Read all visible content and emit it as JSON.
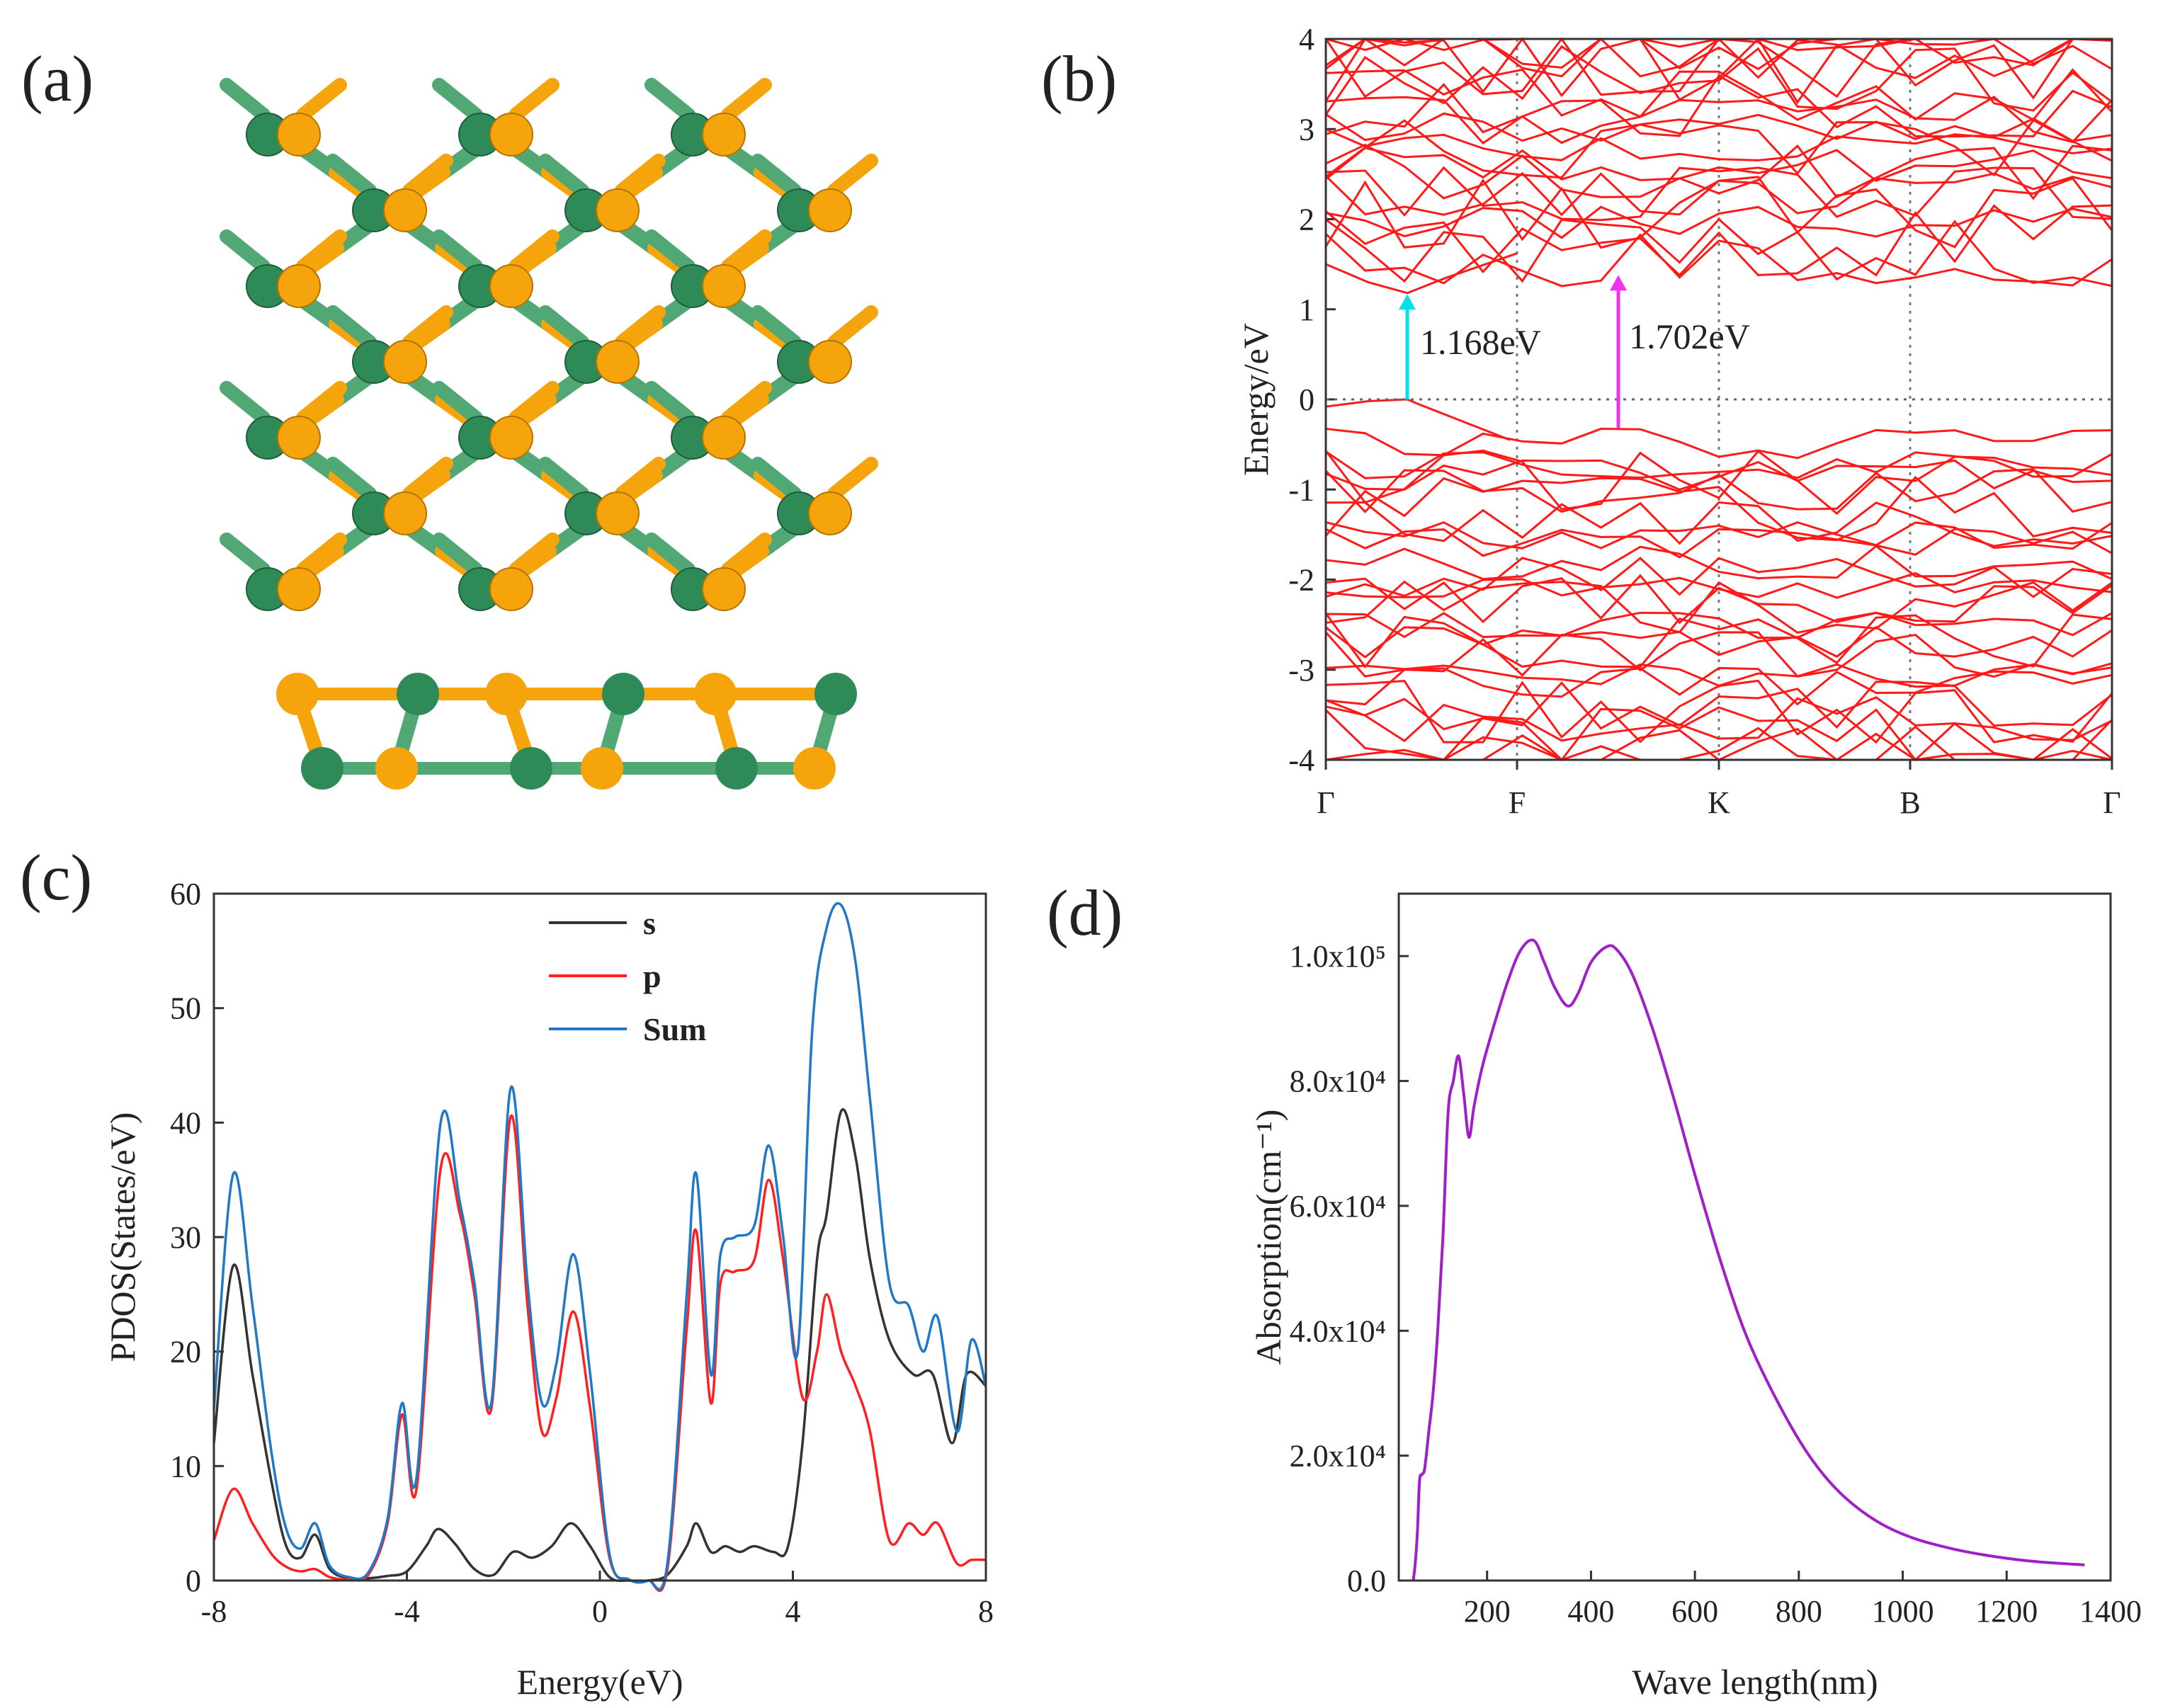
{
  "colors": {
    "green_atom": "#2e8b57",
    "green_bond": "#52a874",
    "orange_atom": "#f5a40b",
    "band_red": "#ff1a1a",
    "cyan_arrow": "#00e1e8",
    "magenta_arrow": "#ee33ee",
    "s_line": "#333333",
    "p_line": "#ff2020",
    "sum_line": "#1f78c8",
    "absorption_line": "#a020c8"
  },
  "panels": {
    "a": {
      "label": "(a)"
    },
    "b": {
      "label": "(b)"
    },
    "c": {
      "label": "(c)"
    },
    "d": {
      "label": "(d)"
    }
  },
  "chart_data": [
    {
      "panel": "b",
      "type": "line",
      "title": "",
      "xlabel": "",
      "ylabel": "Energy/eV",
      "ylim": [
        -4,
        4
      ],
      "yticks": [
        -4,
        -3,
        -2,
        -1,
        0,
        1,
        2,
        3,
        4
      ],
      "k_path": [
        "Γ",
        "F",
        "K",
        "B",
        "Γ"
      ],
      "fermi_level": 0,
      "annotations": [
        {
          "text": "1.168eV",
          "from": [
            0.4,
            0.0
          ],
          "to": [
            0.4,
            1.168
          ],
          "color": "cyan"
        },
        {
          "text": "1.702eV",
          "from": [
            1.5,
            -0.32
          ],
          "to": [
            1.5,
            1.38
          ],
          "color": "magenta"
        }
      ],
      "conduction_band_range": [
        1.17,
        4.0
      ],
      "valence_band_range": [
        -4.0,
        0.0
      ]
    },
    {
      "panel": "c",
      "type": "line",
      "title": "",
      "xlabel": "Energy(eV)",
      "ylabel": "PDOS(States/eV)",
      "xlim": [
        -8,
        8
      ],
      "ylim": [
        0,
        60
      ],
      "xticks": [
        -8,
        -4,
        0,
        4,
        8
      ],
      "yticks": [
        0,
        10,
        20,
        30,
        40,
        50,
        60
      ],
      "legend": [
        "s",
        "p",
        "Sum"
      ],
      "legend_position": "top-center",
      "series": [
        {
          "name": "s",
          "x": [
            -8,
            -7.6,
            -7.2,
            -6.8,
            -6.5,
            -6.2,
            -5.9,
            -5.6,
            -5.2,
            -4.8,
            -4.4,
            -4.0,
            -3.6,
            -3.35,
            -3.0,
            -2.6,
            -2.2,
            -1.8,
            -1.4,
            -1.0,
            -0.6,
            -0.2,
            0.2,
            0.6,
            1.0,
            1.4,
            1.8,
            2.0,
            2.3,
            2.6,
            2.9,
            3.2,
            3.6,
            3.9,
            4.2,
            4.5,
            4.7,
            5.0,
            5.3,
            5.6,
            6.0,
            6.5,
            6.9,
            7.3,
            7.6,
            8
          ],
          "values": [
            12,
            27.5,
            18,
            8.5,
            3,
            2,
            4,
            1,
            0.2,
            0.2,
            0.4,
            0.8,
            3,
            4.5,
            3.2,
            1,
            0.5,
            2.5,
            2,
            3,
            5,
            3,
            0.3,
            0,
            0,
            0.5,
            3,
            5,
            2.5,
            3,
            2.5,
            3,
            2.5,
            3,
            12,
            28,
            32,
            41,
            37,
            28,
            21,
            18,
            18,
            12,
            18,
            17
          ]
        },
        {
          "name": "p",
          "x": [
            -8,
            -7.6,
            -7.2,
            -6.8,
            -6.5,
            -6.2,
            -5.9,
            -5.6,
            -5.2,
            -4.8,
            -4.4,
            -4.1,
            -3.8,
            -3.3,
            -2.9,
            -2.6,
            -2.25,
            -1.85,
            -1.5,
            -1.2,
            -0.9,
            -0.55,
            -0.2,
            0.2,
            0.6,
            1.0,
            1.4,
            1.8,
            2.0,
            2.3,
            2.5,
            2.8,
            3.2,
            3.5,
            3.8,
            4.2,
            4.5,
            4.7,
            5.0,
            5.3,
            5.6,
            6.0,
            6.4,
            6.7,
            7.0,
            7.4,
            7.7,
            8
          ],
          "values": [
            3.5,
            8,
            5,
            2.3,
            1.2,
            0.8,
            1,
            0.3,
            0.1,
            0.5,
            5,
            14.5,
            8,
            36,
            32,
            25,
            15,
            40.5,
            24,
            13,
            16,
            23.5,
            15,
            2,
            0.1,
            0,
            1,
            22,
            30.5,
            15.5,
            26,
            27,
            28,
            35,
            28,
            16,
            20,
            25,
            20,
            17,
            13,
            3.5,
            5,
            4,
            5,
            1.5,
            1.8,
            1.8
          ]
        },
        {
          "name": "Sum",
          "x": [
            -8,
            -7.6,
            -7.2,
            -6.8,
            -6.5,
            -6.2,
            -5.9,
            -5.6,
            -5.2,
            -4.8,
            -4.4,
            -4.1,
            -3.8,
            -3.3,
            -2.9,
            -2.6,
            -2.25,
            -1.85,
            -1.5,
            -1.2,
            -0.9,
            -0.55,
            -0.2,
            0.2,
            0.6,
            1.0,
            1.4,
            1.8,
            2.0,
            2.3,
            2.5,
            2.8,
            3.2,
            3.5,
            3.8,
            4.1,
            4.4,
            4.7,
            5.0,
            5.3,
            5.6,
            6.0,
            6.4,
            6.7,
            7.0,
            7.4,
            7.7,
            8
          ],
          "values": [
            15,
            35.5,
            24,
            11,
            4.5,
            2.8,
            5,
            1.3,
            0.3,
            0.7,
            5.4,
            15.5,
            9,
            40,
            33,
            26,
            15.5,
            43,
            26,
            15.5,
            19,
            28.5,
            18,
            2.3,
            0.1,
            0,
            1.5,
            25,
            35.5,
            18,
            28.5,
            30,
            31,
            38,
            30,
            20,
            48,
            57,
            59,
            54,
            42,
            26,
            24,
            20,
            23,
            13,
            21,
            17
          ]
        }
      ]
    },
    {
      "panel": "d",
      "type": "line",
      "title": "",
      "xlabel": "Wave length(nm)",
      "ylabel": "Absorption(cm⁻¹)",
      "xlim": [
        30,
        1400
      ],
      "ylim": [
        0,
        110000
      ],
      "xticks": [
        200,
        400,
        600,
        800,
        1000,
        1200,
        1400
      ],
      "yticks": [
        0,
        20000,
        40000,
        60000,
        80000,
        100000
      ],
      "ytick_labels": [
        "0.0",
        "2.0x10⁴",
        "4.0x10⁴",
        "6.0x10⁴",
        "8.0x10⁴",
        "1.0x10⁵"
      ],
      "series": [
        {
          "name": "Absorption",
          "x": [
            58,
            62,
            66,
            70,
            75,
            80,
            88,
            96,
            105,
            115,
            125,
            135,
            145,
            155,
            165,
            175,
            190,
            210,
            240,
            265,
            290,
            310,
            330,
            355,
            375,
            400,
            430,
            450,
            480,
            520,
            560,
            600,
            650,
            700,
            760,
            820,
            880,
            950,
            1020,
            1100,
            1180,
            1260,
            1350
          ],
          "values": [
            0,
            3000,
            8000,
            16000,
            17000,
            18000,
            24000,
            30000,
            40000,
            55000,
            75000,
            80000,
            84000,
            78000,
            71000,
            76000,
            82000,
            88000,
            96000,
            101000,
            102500,
            99000,
            95000,
            92000,
            94000,
            99000,
            101500,
            101000,
            97000,
            88000,
            77000,
            65000,
            51000,
            39000,
            28500,
            20000,
            14000,
            9500,
            6800,
            5000,
            3800,
            3000,
            2500
          ]
        }
      ]
    }
  ]
}
